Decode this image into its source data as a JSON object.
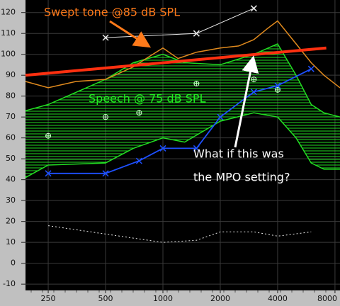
{
  "chart_data": {
    "type": "line",
    "xlim": [
      190,
      8500
    ],
    "log_x": true,
    "xticks": [
      250,
      500,
      1000,
      2000,
      4000,
      8000
    ],
    "ylim": [
      -13,
      126
    ],
    "yticks": [
      -10,
      0,
      10,
      20,
      30,
      40,
      50,
      60,
      70,
      80,
      90,
      100,
      110,
      120
    ],
    "grid": true,
    "band": {
      "color": "#22dd22",
      "x": [
        190,
        250,
        500,
        700,
        1000,
        1300,
        2000,
        3000,
        4000,
        5000,
        6000,
        7000,
        8500
      ],
      "upper": [
        73,
        76,
        88,
        96,
        100,
        96,
        95,
        100,
        105,
        90,
        76,
        72,
        70
      ],
      "lower": [
        41,
        47,
        48,
        55,
        60,
        58,
        68,
        72,
        70,
        60,
        48,
        45,
        45
      ]
    },
    "targets": {
      "color": "#c8ffc8",
      "x": [
        250,
        500,
        750,
        1500,
        3000,
        4000
      ],
      "values": [
        61,
        70,
        72,
        86,
        88,
        83
      ]
    },
    "series": [
      {
        "color": "#e08a1e",
        "width": 1.5,
        "x": [
          190,
          250,
          350,
          500,
          700,
          850,
          1000,
          1200,
          1500,
          2000,
          2500,
          3000,
          3500,
          4000,
          5000,
          6000,
          7000,
          8500
        ],
        "values": [
          87,
          84,
          87,
          88,
          94,
          99,
          103,
          98,
          101,
          103,
          104,
          107,
          112,
          116,
          105,
          96,
          90,
          84
        ]
      },
      {
        "color": "#e8e8e8",
        "width": 1,
        "marker": "x",
        "x": [
          500,
          1500,
          3000
        ],
        "values": [
          108,
          110,
          122
        ]
      },
      {
        "color": "#1e50ff",
        "width": 1.8,
        "marker": "x",
        "x": [
          250,
          500,
          750,
          1000,
          1500,
          2000,
          3000,
          4000,
          6000
        ],
        "values": [
          43,
          43,
          49,
          55,
          55,
          70,
          82,
          85,
          93
        ]
      },
      {
        "color": "#e8e8e8",
        "width": 1,
        "dash": true,
        "x": [
          250,
          500,
          1000,
          1500,
          2000,
          3000,
          4000,
          6000
        ],
        "values": [
          18,
          14,
          10,
          11,
          15,
          15,
          13,
          15
        ]
      },
      {
        "color": "#ff3010",
        "width": 4,
        "x": [
          190,
          7200
        ],
        "values": [
          90,
          103
        ]
      }
    ],
    "annotations": [
      {
        "lines": [
          "Swept tone @85 dB SPL"
        ],
        "color": "#ff7a1a"
      },
      {
        "lines": [
          "Speech @ 75 dB SPL"
        ],
        "color": "#22ee22"
      },
      {
        "lines": [
          "What if this was",
          "the MPO setting?"
        ],
        "color": "#ffffff"
      }
    ]
  }
}
